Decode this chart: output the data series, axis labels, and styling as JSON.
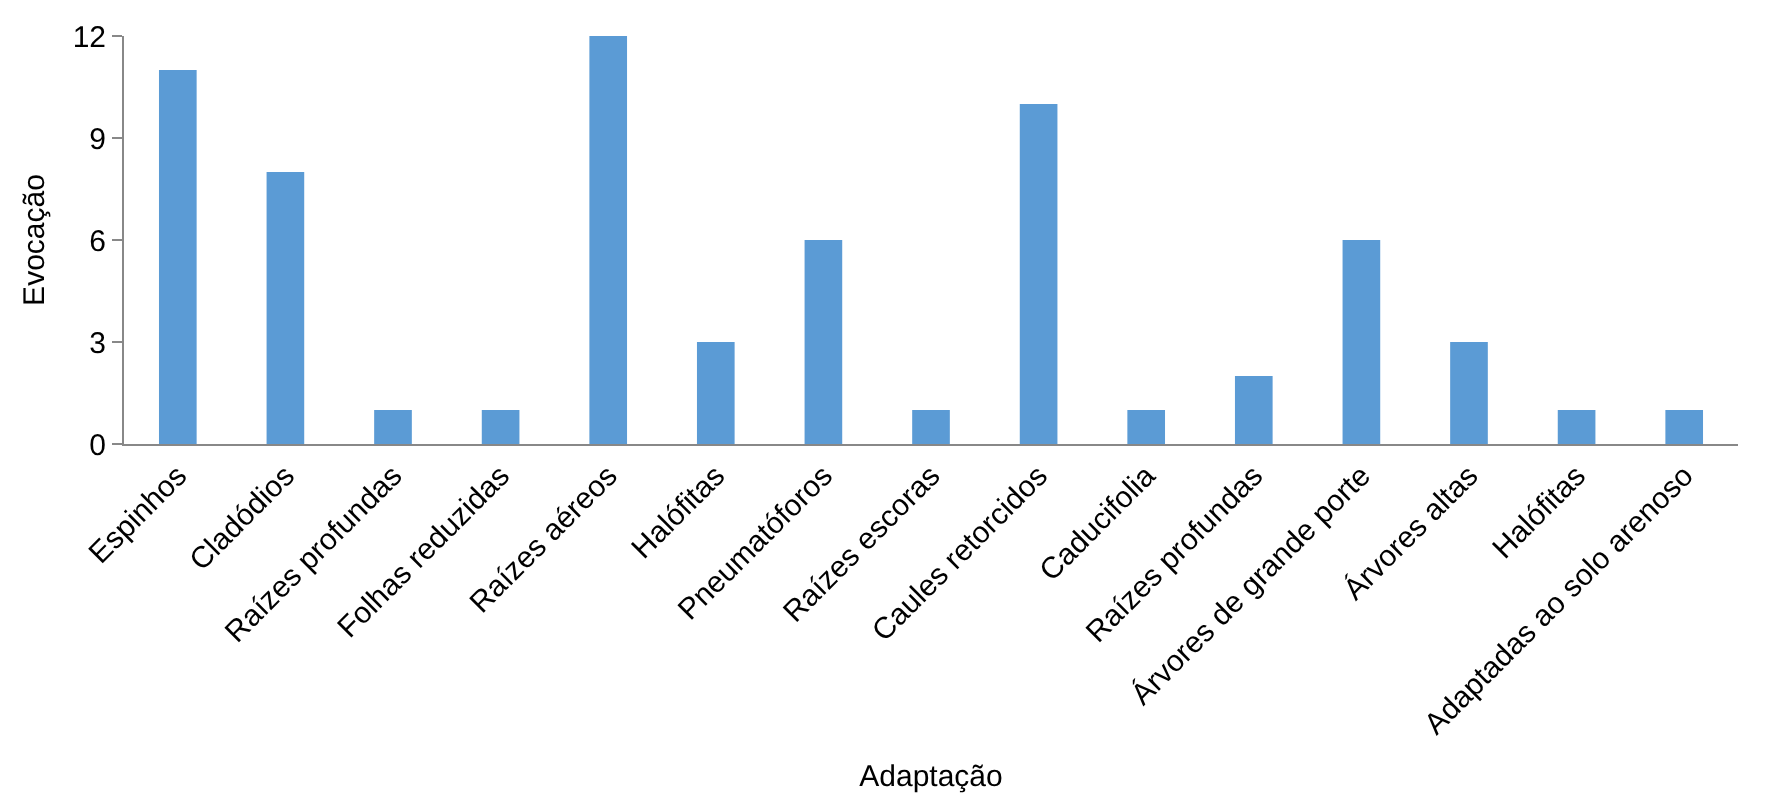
{
  "chart_data": {
    "type": "bar",
    "xlabel": "Adaptação",
    "ylabel": "Evocação",
    "categories": [
      "Espinhos",
      "Cladódios",
      "Raízes profundas",
      "Folhas reduzidas",
      "Raízes aéreos",
      "Halófitas",
      "Pneumatóforos",
      "Raízes escoras",
      "Caules retorcidos",
      "Caducifolia",
      "Raízes profundas",
      "Árvores de grande porte",
      "Árvores altas",
      "Halófitas",
      "Adaptadas ao solo arenoso"
    ],
    "series": [
      {
        "color": "#5b9bd5",
        "values": [
          11,
          8,
          1,
          1,
          12,
          3,
          6,
          1,
          10,
          1,
          2,
          6,
          3,
          1,
          1
        ]
      }
    ],
    "ylim": [
      0,
      12
    ],
    "yticks": [
      0,
      3,
      6,
      9,
      12
    ],
    "grid": false,
    "legend": false
  }
}
